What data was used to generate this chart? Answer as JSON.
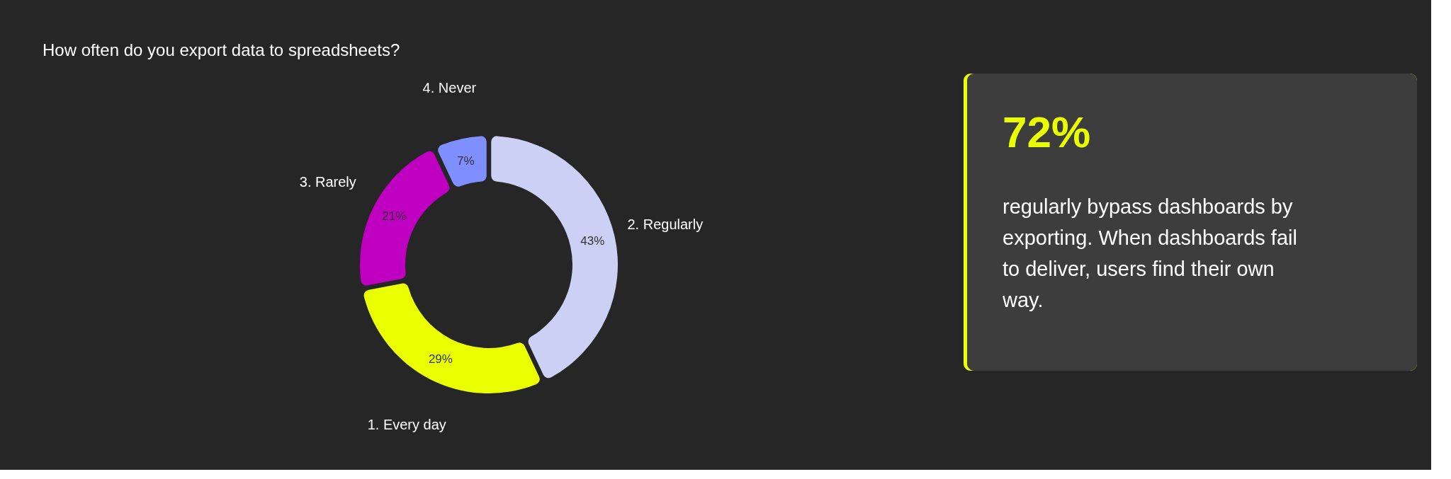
{
  "chart_data": [
    {
      "type": "donut",
      "title": "How often do you export data to spreadsheets?",
      "categories": [
        "2. Regularly",
        "1. Every day",
        "3. Rarely",
        "4. Never"
      ],
      "values": [
        43,
        29,
        21,
        7
      ],
      "colors": [
        "#cdd0f5",
        "#eaff00",
        "#c000c0",
        "#7f8fff"
      ],
      "value_labels": [
        "43%",
        "29%",
        "21%",
        "7%"
      ]
    },
    {
      "type": "other",
      "title": "72%",
      "annotations": [
        "regularly bypass dashboards by exporting. When dashboards fail to deliver, users find their own way."
      ]
    }
  ]
}
